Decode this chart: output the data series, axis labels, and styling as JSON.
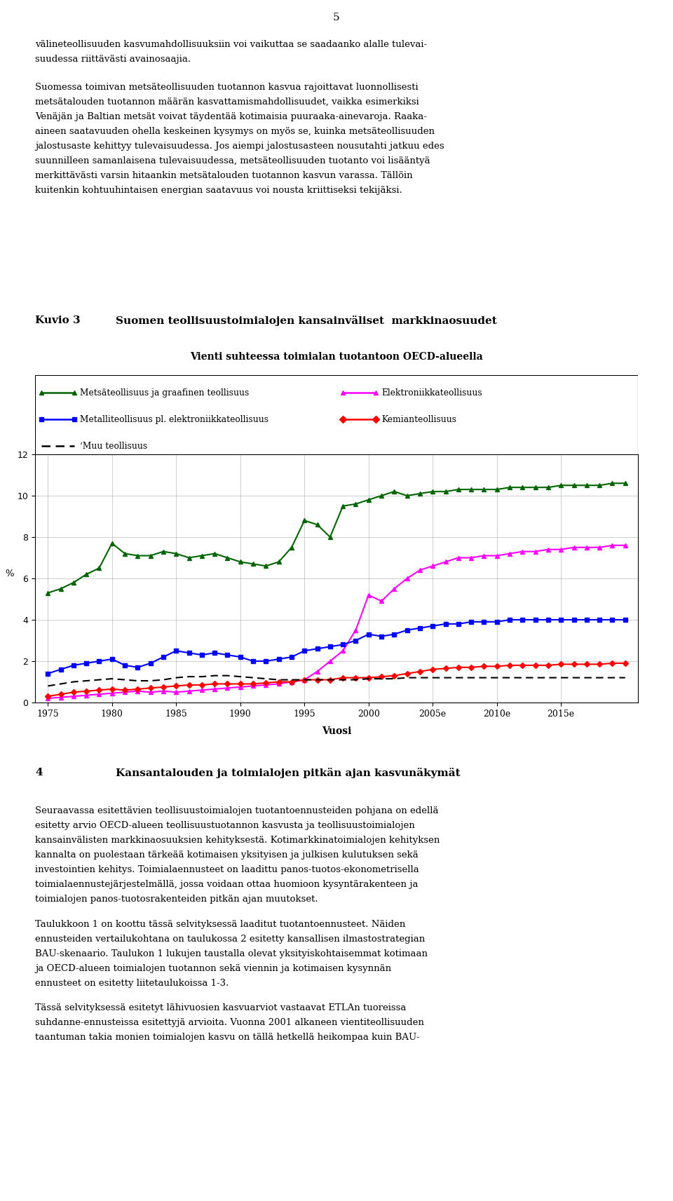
{
  "page_number": "5",
  "top_text_paragraphs": [
    "välineteollisuuden kasvumahdollisuuksiin voi vaikuttaa se saadaanko alalle tulevai-\nsuudessa riittävästi avainosaajia.",
    "Suomessa toimivan metsäteollisuuden tuotannon kasvua rajoittavat luonnollisesti\nmetsätalouden tuotannon määrän kasvattamismahdollisuudet, vaikka esimerkiksi\nVenäjän ja Baltian metsät voivat täydentää kotimaisia puuraaka-ainevaroja. Raaka-\naineen saatavuuden ohella keskeinen kysymys on myös se, kuinka metsäteollisuuden\njalostusaste kehittyy tulevaisuudessa. Jos aiempi jalostusasteen nousutahti jatkuu edes\nsuunnilleen samanlaisena tulevaisuudessa, metsäteollisuuden tuotanto voi lisääntyä\nmerkittävästi varsin hitaankin metsätalouden tuotannon kasvun varassa. Tällöin\nkuitenkin kohtuuhintaisen energian saatavuus voi nousta kriittiseksi tekijäksi."
  ],
  "kuvio_label": "Kuvio 3",
  "kuvio_title": "Suomen teollisuustoimialojen kansainväliset  markkinaosuudet",
  "chart_subtitle": "Vienti suhteessa toimialan tuotantoon OECD-alueella",
  "ylabel": "%",
  "xlabel": "Vuosi",
  "ylim": [
    0,
    12
  ],
  "yticks": [
    0,
    2,
    4,
    6,
    8,
    10,
    12
  ],
  "xtick_positions": [
    1975,
    1980,
    1985,
    1990,
    1995,
    2000,
    2005,
    2010,
    2015
  ],
  "xtick_labels": [
    "1975",
    "1980",
    "1985",
    "1990",
    "1995",
    "2000",
    "2005e",
    "2010e",
    "2015e"
  ],
  "series": {
    "metsa": {
      "label": "Metsäteollisuus ja graafinen teollisuus",
      "color": "#006400",
      "marker": "^",
      "linestyle": "-",
      "years": [
        1975,
        1976,
        1977,
        1978,
        1979,
        1980,
        1981,
        1982,
        1983,
        1984,
        1985,
        1986,
        1987,
        1988,
        1989,
        1990,
        1991,
        1992,
        1993,
        1994,
        1995,
        1996,
        1997,
        1998,
        1999,
        2000,
        2001,
        2002,
        2003,
        2004,
        2005,
        2006,
        2007,
        2008,
        2009,
        2010,
        2011,
        2012,
        2013,
        2014,
        2015,
        2016,
        2017,
        2018,
        2019,
        2020
      ],
      "values": [
        5.3,
        5.5,
        5.8,
        6.2,
        6.5,
        7.7,
        7.2,
        7.1,
        7.1,
        7.3,
        7.2,
        7.0,
        7.1,
        7.2,
        7.0,
        6.8,
        6.7,
        6.6,
        6.8,
        7.5,
        8.8,
        8.6,
        8.0,
        9.5,
        9.6,
        9.8,
        10.0,
        10.2,
        10.0,
        10.1,
        10.2,
        10.2,
        10.3,
        10.3,
        10.3,
        10.3,
        10.4,
        10.4,
        10.4,
        10.4,
        10.5,
        10.5,
        10.5,
        10.5,
        10.6,
        10.6
      ]
    },
    "elektroniikka": {
      "label": "Elektroniikkateollisuus",
      "color": "#FF00FF",
      "marker": "^",
      "linestyle": "-",
      "years": [
        1975,
        1976,
        1977,
        1978,
        1979,
        1980,
        1981,
        1982,
        1983,
        1984,
        1985,
        1986,
        1987,
        1988,
        1989,
        1990,
        1991,
        1992,
        1993,
        1994,
        1995,
        1996,
        1997,
        1998,
        1999,
        2000,
        2001,
        2002,
        2003,
        2004,
        2005,
        2006,
        2007,
        2008,
        2009,
        2010,
        2011,
        2012,
        2013,
        2014,
        2015,
        2016,
        2017,
        2018,
        2019,
        2020
      ],
      "values": [
        0.2,
        0.25,
        0.3,
        0.35,
        0.4,
        0.45,
        0.5,
        0.55,
        0.5,
        0.55,
        0.5,
        0.55,
        0.6,
        0.65,
        0.7,
        0.75,
        0.8,
        0.85,
        0.9,
        1.0,
        1.1,
        1.5,
        2.0,
        2.5,
        3.5,
        5.2,
        4.9,
        5.5,
        6.0,
        6.4,
        6.6,
        6.8,
        7.0,
        7.0,
        7.1,
        7.1,
        7.2,
        7.3,
        7.3,
        7.4,
        7.4,
        7.5,
        7.5,
        7.5,
        7.6,
        7.6
      ]
    },
    "metalli": {
      "label": "Metalliteollisuus pl. elektroniikkateollisuus",
      "color": "#0000FF",
      "marker": "s",
      "linestyle": "-",
      "years": [
        1975,
        1976,
        1977,
        1978,
        1979,
        1980,
        1981,
        1982,
        1983,
        1984,
        1985,
        1986,
        1987,
        1988,
        1989,
        1990,
        1991,
        1992,
        1993,
        1994,
        1995,
        1996,
        1997,
        1998,
        1999,
        2000,
        2001,
        2002,
        2003,
        2004,
        2005,
        2006,
        2007,
        2008,
        2009,
        2010,
        2011,
        2012,
        2013,
        2014,
        2015,
        2016,
        2017,
        2018,
        2019,
        2020
      ],
      "values": [
        1.4,
        1.6,
        1.8,
        1.9,
        2.0,
        2.1,
        1.8,
        1.7,
        1.9,
        2.2,
        2.5,
        2.4,
        2.3,
        2.4,
        2.3,
        2.2,
        2.0,
        2.0,
        2.1,
        2.2,
        2.5,
        2.6,
        2.7,
        2.8,
        3.0,
        3.3,
        3.2,
        3.3,
        3.5,
        3.6,
        3.7,
        3.8,
        3.8,
        3.9,
        3.9,
        3.9,
        4.0,
        4.0,
        4.0,
        4.0,
        4.0,
        4.0,
        4.0,
        4.0,
        4.0,
        4.0
      ]
    },
    "kemia": {
      "label": "Kemianteollisuus",
      "color": "#FF0000",
      "marker": "D",
      "linestyle": "-",
      "years": [
        1975,
        1976,
        1977,
        1978,
        1979,
        1980,
        1981,
        1982,
        1983,
        1984,
        1985,
        1986,
        1987,
        1988,
        1989,
        1990,
        1991,
        1992,
        1993,
        1994,
        1995,
        1996,
        1997,
        1998,
        1999,
        2000,
        2001,
        2002,
        2003,
        2004,
        2005,
        2006,
        2007,
        2008,
        2009,
        2010,
        2011,
        2012,
        2013,
        2014,
        2015,
        2016,
        2017,
        2018,
        2019,
        2020
      ],
      "values": [
        0.3,
        0.4,
        0.5,
        0.55,
        0.6,
        0.65,
        0.6,
        0.65,
        0.7,
        0.75,
        0.8,
        0.85,
        0.85,
        0.9,
        0.9,
        0.9,
        0.9,
        0.95,
        1.0,
        1.0,
        1.1,
        1.1,
        1.1,
        1.2,
        1.2,
        1.2,
        1.25,
        1.3,
        1.4,
        1.5,
        1.6,
        1.65,
        1.7,
        1.7,
        1.75,
        1.75,
        1.8,
        1.8,
        1.8,
        1.8,
        1.85,
        1.85,
        1.85,
        1.85,
        1.9,
        1.9
      ]
    },
    "muu": {
      "label": "‘Muu teollisuus",
      "color": "#000000",
      "marker": "none",
      "linestyle": "--",
      "years": [
        1975,
        1976,
        1977,
        1978,
        1979,
        1980,
        1981,
        1982,
        1983,
        1984,
        1985,
        1986,
        1987,
        1988,
        1989,
        1990,
        1991,
        1992,
        1993,
        1994,
        1995,
        1996,
        1997,
        1998,
        1999,
        2000,
        2001,
        2002,
        2003,
        2004,
        2005,
        2006,
        2007,
        2008,
        2009,
        2010,
        2011,
        2012,
        2013,
        2014,
        2015,
        2016,
        2017,
        2018,
        2019,
        2020
      ],
      "values": [
        0.8,
        0.9,
        1.0,
        1.05,
        1.1,
        1.15,
        1.1,
        1.05,
        1.05,
        1.1,
        1.2,
        1.25,
        1.25,
        1.3,
        1.3,
        1.25,
        1.2,
        1.15,
        1.1,
        1.1,
        1.1,
        1.1,
        1.1,
        1.1,
        1.1,
        1.15,
        1.15,
        1.15,
        1.2,
        1.2,
        1.2,
        1.2,
        1.2,
        1.2,
        1.2,
        1.2,
        1.2,
        1.2,
        1.2,
        1.2,
        1.2,
        1.2,
        1.2,
        1.2,
        1.2,
        1.2
      ]
    }
  },
  "section4_number": "4",
  "section4_heading": "Kansantalouden ja toimialojen pitkän ajan kasvunäkymät",
  "bottom_paragraphs": [
    "Seuraavassa esitettävien teollisuustoimialojen tuotantoennusteiden pohjana on edellä\nesitetty arvio OECD-alueen teollisuustuotannon kasvusta ja teollisuustoimialojen\nkansainvälisten markkinaosuuksien kehityksestä. Kotimarkkinatoimialojen kehityksen\nkannalta on puolestaan tärkeää kotimaisen yksityisen ja julkisen kulutuksen sekä\ninvestointien kehitys. Toimialaennusteet on laadittu panos-tuotos-ekonometrisella\ntoimialaennustejärjestelmällä, jossa voidaan ottaa huomioon kysyntärakenteen ja\ntoimialojen panos-tuotosrakenteiden pitkän ajan muutokset.",
    "Taulukkoon 1 on koottu tässä selvityksessä laaditut tuotantoennusteet. Näiden\nennusteiden vertailukohtana on taulukossa 2 esitetty kansallisen ilmastostrategian\nBAU-skenaario. Taulukon 1 lukujen taustalla olevat yksityiskohtaisemmat kotimaan\nja OECD-alueen toimialojen tuotannon sekä viennin ja kotimaisen kysynnän\nennusteet on esitetty liitetaulukoissa 1-3.",
    "Tässä selvityksessä esitetyt lähivuosien kasvuarviot vastaavat ETLAn tuoreissa\nsuhdanne-ennusteissa esitettyjä arvioita. Vuonna 2001 alkaneen vientiteollisuuden\ntaantuman takia monien toimialojen kasvu on tällä hetkellä heikompaa kuin BAU-"
  ],
  "bg_color": "#ffffff",
  "text_color": "#000000",
  "grid_color": "#aaaaaa",
  "font_size_body": 9.5,
  "font_size_heading": 11.0,
  "font_size_axis": 9.5,
  "font_size_tick": 9.0
}
